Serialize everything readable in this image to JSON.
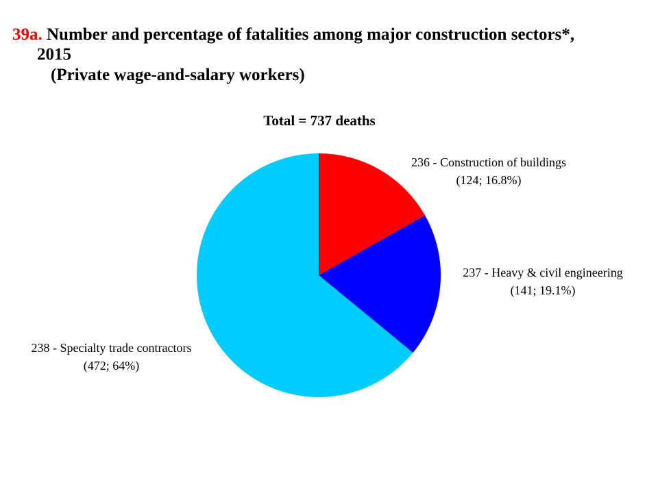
{
  "title": {
    "number": "39a.",
    "line1": " Number and percentage of fatalities among major construction sectors*,",
    "line2": "2015",
    "line3": "(Private wage-and-salary workers)"
  },
  "colors": {
    "title_number": "#ff0000",
    "buildings": "#ff0000",
    "heavy_civil": "#0000ff",
    "specialty_trade": "#00ccff"
  },
  "chart_data": {
    "type": "pie",
    "title": "Total = 737 deaths",
    "total": 737,
    "start": "12 o'clock, clockwise",
    "slices": [
      {
        "code": "236",
        "name": "236 - Construction of buildings",
        "value": 124,
        "percent": 16.8,
        "label_detail": "(124; 16.8%)",
        "color": "#ff0000"
      },
      {
        "code": "237",
        "name": "237 - Heavy & civil engineering",
        "value": 141,
        "percent": 19.1,
        "label_detail": "(141; 19.1%)",
        "color": "#0000ff"
      },
      {
        "code": "238",
        "name": "238 - Specialty trade contractors",
        "value": 472,
        "percent": 64,
        "label_detail": "(472; 64%)",
        "color": "#00ccff"
      }
    ]
  }
}
